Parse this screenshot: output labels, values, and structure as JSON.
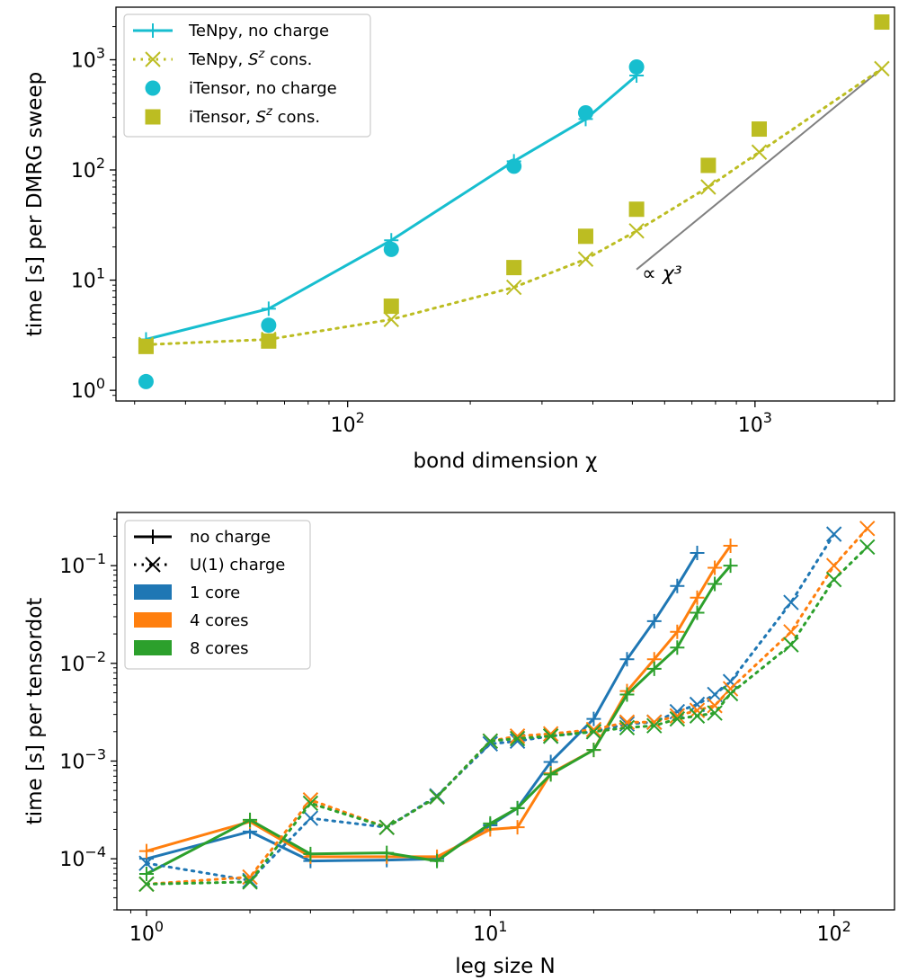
{
  "chart_data": [
    {
      "type": "line",
      "xlabel": "bond dimension χ",
      "ylabel": "time [s] per DMRG sweep",
      "xscale": "log",
      "yscale": "log",
      "xlim": [
        27,
        2200
      ],
      "ylim": [
        0.8,
        3000
      ],
      "x_ticks": [
        {
          "value": 100,
          "base": "10",
          "exp": "2"
        },
        {
          "value": 1000,
          "base": "10",
          "exp": "3"
        }
      ],
      "y_ticks": [
        {
          "value": 1,
          "base": "10",
          "exp": "0"
        },
        {
          "value": 10,
          "base": "10",
          "exp": "1"
        },
        {
          "value": 100,
          "base": "10",
          "exp": "2"
        },
        {
          "value": 1000,
          "base": "10",
          "exp": "3"
        }
      ],
      "legend_position": "top-left",
      "annotation": {
        "text": "∝ χ³",
        "x": [
          512,
          2048
        ],
        "y": [
          12.5,
          830
        ],
        "color": "#808080"
      },
      "series": [
        {
          "name": "TeNpy, no charge",
          "legend_parts": [
            [
              "TeNpy, no charge",
              ""
            ]
          ],
          "color": "#17becf",
          "line": "solid",
          "marker": "plus",
          "x": [
            32,
            64,
            128,
            256,
            384,
            512
          ],
          "y": [
            2.9,
            5.5,
            23,
            120,
            290,
            720
          ]
        },
        {
          "name": "TeNpy, Sᶻ cons.",
          "legend_parts": [
            [
              "TeNpy, ",
              ""
            ],
            [
              "S",
              "i"
            ],
            [
              "z",
              "sup"
            ],
            [
              " cons.",
              ""
            ]
          ],
          "color": "#bcbd22",
          "line": "dotted",
          "marker": "x",
          "x": [
            32,
            64,
            128,
            256,
            384,
            512,
            768,
            1024,
            2048
          ],
          "y": [
            2.6,
            2.9,
            4.4,
            8.6,
            15.5,
            28,
            70,
            145,
            830
          ]
        },
        {
          "name": "iTensor, no charge",
          "legend_parts": [
            [
              "iTensor, no charge",
              ""
            ]
          ],
          "color": "#17becf",
          "line": "none",
          "marker": "circle",
          "x": [
            32,
            64,
            128,
            256,
            384,
            512
          ],
          "y": [
            1.2,
            3.9,
            19,
            108,
            330,
            860
          ]
        },
        {
          "name": "iTensor, Sᶻ cons.",
          "legend_parts": [
            [
              "iTensor, ",
              ""
            ],
            [
              "S",
              "i"
            ],
            [
              "z",
              "sup"
            ],
            [
              " cons.",
              ""
            ]
          ],
          "color": "#bcbd22",
          "line": "none",
          "marker": "square",
          "x": [
            32,
            64,
            128,
            256,
            384,
            512,
            768,
            1024,
            2048
          ],
          "y": [
            2.5,
            2.8,
            5.8,
            13,
            25,
            44,
            110,
            235,
            2200
          ]
        }
      ]
    },
    {
      "type": "line",
      "xlabel": "leg size N",
      "ylabel": "time [s] per tensordot",
      "xscale": "log",
      "yscale": "log",
      "xlim": [
        0.82,
        150
      ],
      "ylim": [
        3e-05,
        0.35
      ],
      "x_ticks": [
        {
          "value": 1,
          "base": "10",
          "exp": "0"
        },
        {
          "value": 10,
          "base": "10",
          "exp": "1"
        },
        {
          "value": 100,
          "base": "10",
          "exp": "2"
        }
      ],
      "y_ticks": [
        {
          "value": 0.0001,
          "base": "10",
          "exp": "−4"
        },
        {
          "value": 0.001,
          "base": "10",
          "exp": "−3"
        },
        {
          "value": 0.01,
          "base": "10",
          "exp": "−2"
        },
        {
          "value": 0.1,
          "base": "10",
          "exp": "−1"
        }
      ],
      "legend_position": "top-left",
      "legend": [
        {
          "label": "no charge",
          "kind": "style",
          "line": "solid",
          "marker": "plus"
        },
        {
          "label": "U(1) charge",
          "kind": "style",
          "line": "dotted",
          "marker": "x"
        },
        {
          "label": "1 core",
          "kind": "color",
          "color": "#1f77b4"
        },
        {
          "label": "4 cores",
          "kind": "color",
          "color": "#ff7f0e"
        },
        {
          "label": "8 cores",
          "kind": "color",
          "color": "#2ca02c"
        }
      ],
      "series": [
        {
          "cores": "1 core",
          "charge": "no charge",
          "color": "#1f77b4",
          "line": "solid",
          "marker": "plus",
          "x": [
            1,
            2,
            3,
            5,
            7,
            10,
            12,
            15,
            20,
            25,
            30,
            35,
            40
          ],
          "y": [
            0.0001,
            0.00019,
            9.5e-05,
            9.7e-05,
            0.0001,
            0.00022,
            0.00033,
            0.00098,
            0.0027,
            0.011,
            0.027,
            0.062,
            0.135
          ]
        },
        {
          "cores": "4 cores",
          "charge": "no charge",
          "color": "#ff7f0e",
          "line": "solid",
          "marker": "plus",
          "x": [
            1,
            2,
            3,
            5,
            7,
            10,
            12,
            15,
            20,
            25,
            30,
            35,
            40,
            45,
            50
          ],
          "y": [
            0.00012,
            0.00024,
            0.000105,
            0.000105,
            0.000105,
            0.0002,
            0.00021,
            0.00075,
            0.0013,
            0.0052,
            0.011,
            0.021,
            0.047,
            0.095,
            0.16
          ]
        },
        {
          "cores": "8 cores",
          "charge": "no charge",
          "color": "#2ca02c",
          "line": "solid",
          "marker": "plus",
          "x": [
            1,
            2,
            3,
            5,
            7,
            10,
            12,
            15,
            20,
            25,
            30,
            35,
            40,
            45,
            50
          ],
          "y": [
            7e-05,
            0.00025,
            0.000112,
            0.000115,
            9.5e-05,
            0.00023,
            0.00033,
            0.00073,
            0.0013,
            0.0048,
            0.0088,
            0.0145,
            0.033,
            0.065,
            0.1
          ]
        },
        {
          "cores": "1 core",
          "charge": "U(1) charge",
          "color": "#1f77b4",
          "line": "dotted",
          "marker": "x",
          "x": [
            1,
            2,
            3,
            5,
            7,
            10,
            12,
            15,
            20,
            25,
            30,
            35,
            40,
            45,
            50,
            75,
            100
          ],
          "y": [
            9e-05,
            6e-05,
            0.00026,
            0.00021,
            0.00044,
            0.0015,
            0.0016,
            0.0018,
            0.002,
            0.0024,
            0.0025,
            0.0032,
            0.0038,
            0.0048,
            0.0065,
            0.042,
            0.21
          ]
        },
        {
          "cores": "4 cores",
          "charge": "U(1) charge",
          "color": "#ff7f0e",
          "line": "dotted",
          "marker": "x",
          "x": [
            1,
            2,
            3,
            5,
            7,
            10,
            12,
            15,
            20,
            25,
            30,
            35,
            40,
            45,
            50,
            75,
            100,
            125
          ],
          "y": [
            5.5e-05,
            6.5e-05,
            0.0004,
            0.00021,
            0.00043,
            0.0016,
            0.0018,
            0.0019,
            0.0021,
            0.0025,
            0.0025,
            0.0029,
            0.0033,
            0.0037,
            0.0055,
            0.021,
            0.1,
            0.24
          ]
        },
        {
          "cores": "8 cores",
          "charge": "U(1) charge",
          "color": "#2ca02c",
          "line": "dotted",
          "marker": "x",
          "x": [
            1,
            2,
            3,
            5,
            7,
            10,
            12,
            15,
            20,
            25,
            30,
            35,
            40,
            45,
            50,
            75,
            100,
            125
          ],
          "y": [
            5.5e-05,
            5.8e-05,
            0.00037,
            0.00021,
            0.00043,
            0.0016,
            0.0017,
            0.0018,
            0.002,
            0.0022,
            0.0023,
            0.0027,
            0.0029,
            0.0031,
            0.0049,
            0.0155,
            0.072,
            0.155
          ]
        }
      ]
    }
  ]
}
